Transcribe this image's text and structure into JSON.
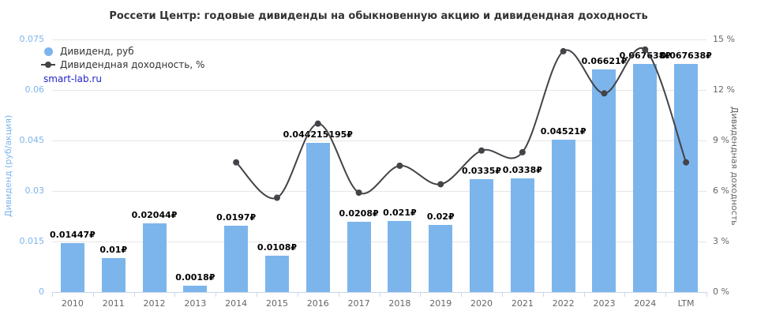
{
  "chart_data": {
    "type": "bar",
    "title": "Россети Центр: годовые дивиденды на обыкновенную акцию и дивидендная доходность",
    "watermark": "smart-lab.ru",
    "categories": [
      "2010",
      "2011",
      "2012",
      "2013",
      "2014",
      "2015",
      "2016",
      "2017",
      "2018",
      "2019",
      "2020",
      "2021",
      "2022",
      "2023",
      "2024",
      "LTM"
    ],
    "series": [
      {
        "name": "Дивиденд, руб",
        "type": "bar",
        "color": "#7cb5ec",
        "values": [
          0.01447,
          0.01,
          0.02044,
          0.0018,
          0.0197,
          0.0108,
          0.044215195,
          0.0208,
          0.021,
          0.02,
          0.0335,
          0.0338,
          0.04521,
          0.06621,
          0.067638,
          0.067638
        ],
        "labels": [
          "0.01447₽",
          "0.01₽",
          "0.02044₽",
          "0.0018₽",
          "0.0197₽",
          "0.0108₽",
          "0.044215195₽",
          "0.0208₽",
          "0.021₽",
          "0.02₽",
          "0.0335₽",
          "0.0338₽",
          "0.04521₽",
          "0.06621₽",
          "0.067638₽",
          "0.067638₽"
        ]
      },
      {
        "name": "Дивидендная доходность, %",
        "type": "line",
        "color": "#434348",
        "values": [
          null,
          null,
          null,
          null,
          7.7,
          5.6,
          10.0,
          5.9,
          7.5,
          6.4,
          8.4,
          8.3,
          14.3,
          11.8,
          14.4,
          7.7
        ]
      }
    ],
    "left_axis": {
      "label": "Дивиденд (руб/акция)",
      "ticks": [
        "0",
        "0.015",
        "0.03",
        "0.045",
        "0.06",
        "0.075"
      ],
      "min": 0,
      "max": 0.075
    },
    "right_axis": {
      "label": "Дивидендная доходность",
      "ticks": [
        "0 %",
        "3 %",
        "6 %",
        "9 %",
        "12 %",
        "15 %"
      ],
      "min": 0,
      "max": 15
    },
    "grid": true,
    "legend_position": "top-left"
  }
}
